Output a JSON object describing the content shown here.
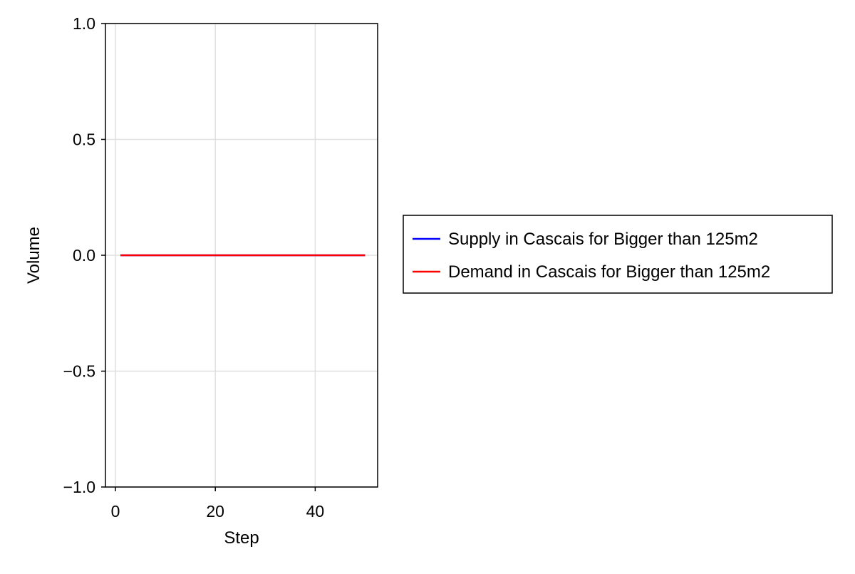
{
  "chart_data": {
    "type": "line",
    "title": "",
    "xlabel": "Step",
    "ylabel": "Volume",
    "xlim": [
      -2,
      52.5
    ],
    "ylim": [
      -1.0,
      1.0
    ],
    "x_ticks": [
      0,
      20,
      40
    ],
    "x_tick_labels": [
      "0",
      "20",
      "40"
    ],
    "y_ticks": [
      -1.0,
      -0.5,
      0.0,
      0.5,
      1.0
    ],
    "y_tick_labels": [
      "−1.0",
      "−0.5",
      "0.0",
      "0.5",
      "1.0"
    ],
    "grid": true,
    "legend_position": "right",
    "x": [
      1,
      50
    ],
    "series": [
      {
        "name": "Supply in Cascais for Bigger than 125m2",
        "color": "#0000ff",
        "values": [
          0,
          0
        ]
      },
      {
        "name": "Demand in Cascais for Bigger than 125m2",
        "color": "#ff0000",
        "values": [
          0,
          0
        ]
      }
    ]
  }
}
